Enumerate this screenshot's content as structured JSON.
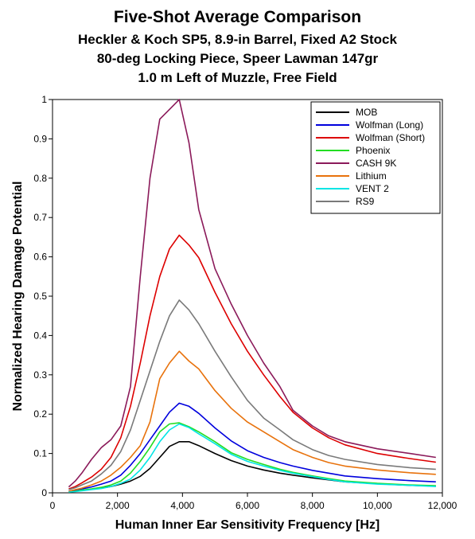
{
  "chart_data": {
    "type": "line",
    "title": "Five-Shot Average Comparison",
    "subtitle_lines": [
      "Heckler & Koch SP5, 8.9-in Barrel, Fixed A2 Stock",
      "80-deg Locking Piece, Speer Lawman 147gr",
      "1.0 m Left of Muzzle, Free Field"
    ],
    "xlabel": "Human Inner Ear Sensitivity Frequency [Hz]",
    "ylabel": "Normalized Hearing Damage Potential",
    "xlim": [
      0,
      12000
    ],
    "ylim": [
      0,
      1
    ],
    "xticks": [
      0,
      2000,
      4000,
      6000,
      8000,
      10000,
      12000
    ],
    "xtick_labels": [
      "0",
      "2,000",
      "4,000",
      "6,000",
      "8,000",
      "10,000",
      "12,000"
    ],
    "yticks": [
      0,
      0.1,
      0.2,
      0.3,
      0.4,
      0.5,
      0.6,
      0.7,
      0.8,
      0.9,
      1
    ],
    "ytick_labels": [
      "0",
      "0.1",
      "0.2",
      "0.3",
      "0.4",
      "0.5",
      "0.6",
      "0.7",
      "0.8",
      "0.9",
      "1"
    ],
    "grid": false,
    "legend_position": "top-right",
    "x": [
      500,
      700,
      900,
      1200,
      1500,
      1800,
      2100,
      2400,
      2700,
      3000,
      3300,
      3600,
      3900,
      4200,
      4500,
      5000,
      5500,
      6000,
      6500,
      7000,
      7400,
      8000,
      8500,
      9000,
      10000,
      11000,
      11800
    ],
    "series": [
      {
        "name": "MOB",
        "color": "#000000",
        "values": [
          0.002,
          0.004,
          0.006,
          0.009,
          0.012,
          0.016,
          0.022,
          0.03,
          0.042,
          0.062,
          0.09,
          0.118,
          0.13,
          0.13,
          0.12,
          0.1,
          0.082,
          0.068,
          0.058,
          0.05,
          0.045,
          0.038,
          0.033,
          0.028,
          0.023,
          0.019,
          0.017
        ]
      },
      {
        "name": "Wolfman (Long)",
        "color": "#0000dd",
        "values": [
          0.004,
          0.007,
          0.01,
          0.015,
          0.022,
          0.03,
          0.045,
          0.07,
          0.1,
          0.135,
          0.17,
          0.205,
          0.228,
          0.22,
          0.202,
          0.165,
          0.132,
          0.107,
          0.09,
          0.077,
          0.068,
          0.057,
          0.05,
          0.043,
          0.036,
          0.031,
          0.028
        ]
      },
      {
        "name": "Wolfman (Short)",
        "color": "#dd0000",
        "values": [
          0.01,
          0.016,
          0.025,
          0.04,
          0.06,
          0.09,
          0.14,
          0.22,
          0.33,
          0.45,
          0.55,
          0.62,
          0.655,
          0.63,
          0.598,
          0.51,
          0.43,
          0.36,
          0.3,
          0.245,
          0.205,
          0.165,
          0.14,
          0.122,
          0.1,
          0.087,
          0.078
        ]
      },
      {
        "name": "Phoenix",
        "color": "#22dd22",
        "values": [
          0.002,
          0.004,
          0.007,
          0.01,
          0.014,
          0.02,
          0.03,
          0.05,
          0.08,
          0.115,
          0.155,
          0.175,
          0.178,
          0.168,
          0.155,
          0.13,
          0.102,
          0.085,
          0.072,
          0.06,
          0.052,
          0.043,
          0.036,
          0.03,
          0.024,
          0.02,
          0.018
        ]
      },
      {
        "name": "CASH 9K",
        "color": "#8b1a5a",
        "values": [
          0.015,
          0.03,
          0.05,
          0.085,
          0.115,
          0.135,
          0.17,
          0.27,
          0.55,
          0.8,
          0.95,
          0.975,
          1.0,
          0.89,
          0.72,
          0.57,
          0.48,
          0.4,
          0.33,
          0.27,
          0.21,
          0.17,
          0.145,
          0.13,
          0.112,
          0.1,
          0.09
        ]
      },
      {
        "name": "Lithium",
        "color": "#e8720c",
        "values": [
          0.004,
          0.008,
          0.012,
          0.02,
          0.03,
          0.045,
          0.065,
          0.09,
          0.12,
          0.18,
          0.29,
          0.33,
          0.36,
          0.335,
          0.315,
          0.26,
          0.215,
          0.18,
          0.155,
          0.13,
          0.11,
          0.09,
          0.077,
          0.068,
          0.058,
          0.051,
          0.047
        ]
      },
      {
        "name": "VENT 2",
        "color": "#00e5e5",
        "values": [
          0.002,
          0.003,
          0.005,
          0.008,
          0.011,
          0.016,
          0.024,
          0.035,
          0.058,
          0.09,
          0.13,
          0.16,
          0.175,
          0.166,
          0.15,
          0.125,
          0.098,
          0.08,
          0.068,
          0.057,
          0.05,
          0.041,
          0.034,
          0.028,
          0.022,
          0.019,
          0.016
        ]
      },
      {
        "name": "RS9",
        "color": "#7a7a7a",
        "values": [
          0.008,
          0.013,
          0.02,
          0.03,
          0.048,
          0.07,
          0.105,
          0.16,
          0.235,
          0.31,
          0.385,
          0.45,
          0.49,
          0.465,
          0.43,
          0.36,
          0.295,
          0.235,
          0.19,
          0.16,
          0.135,
          0.11,
          0.095,
          0.085,
          0.072,
          0.064,
          0.06
        ]
      }
    ]
  }
}
